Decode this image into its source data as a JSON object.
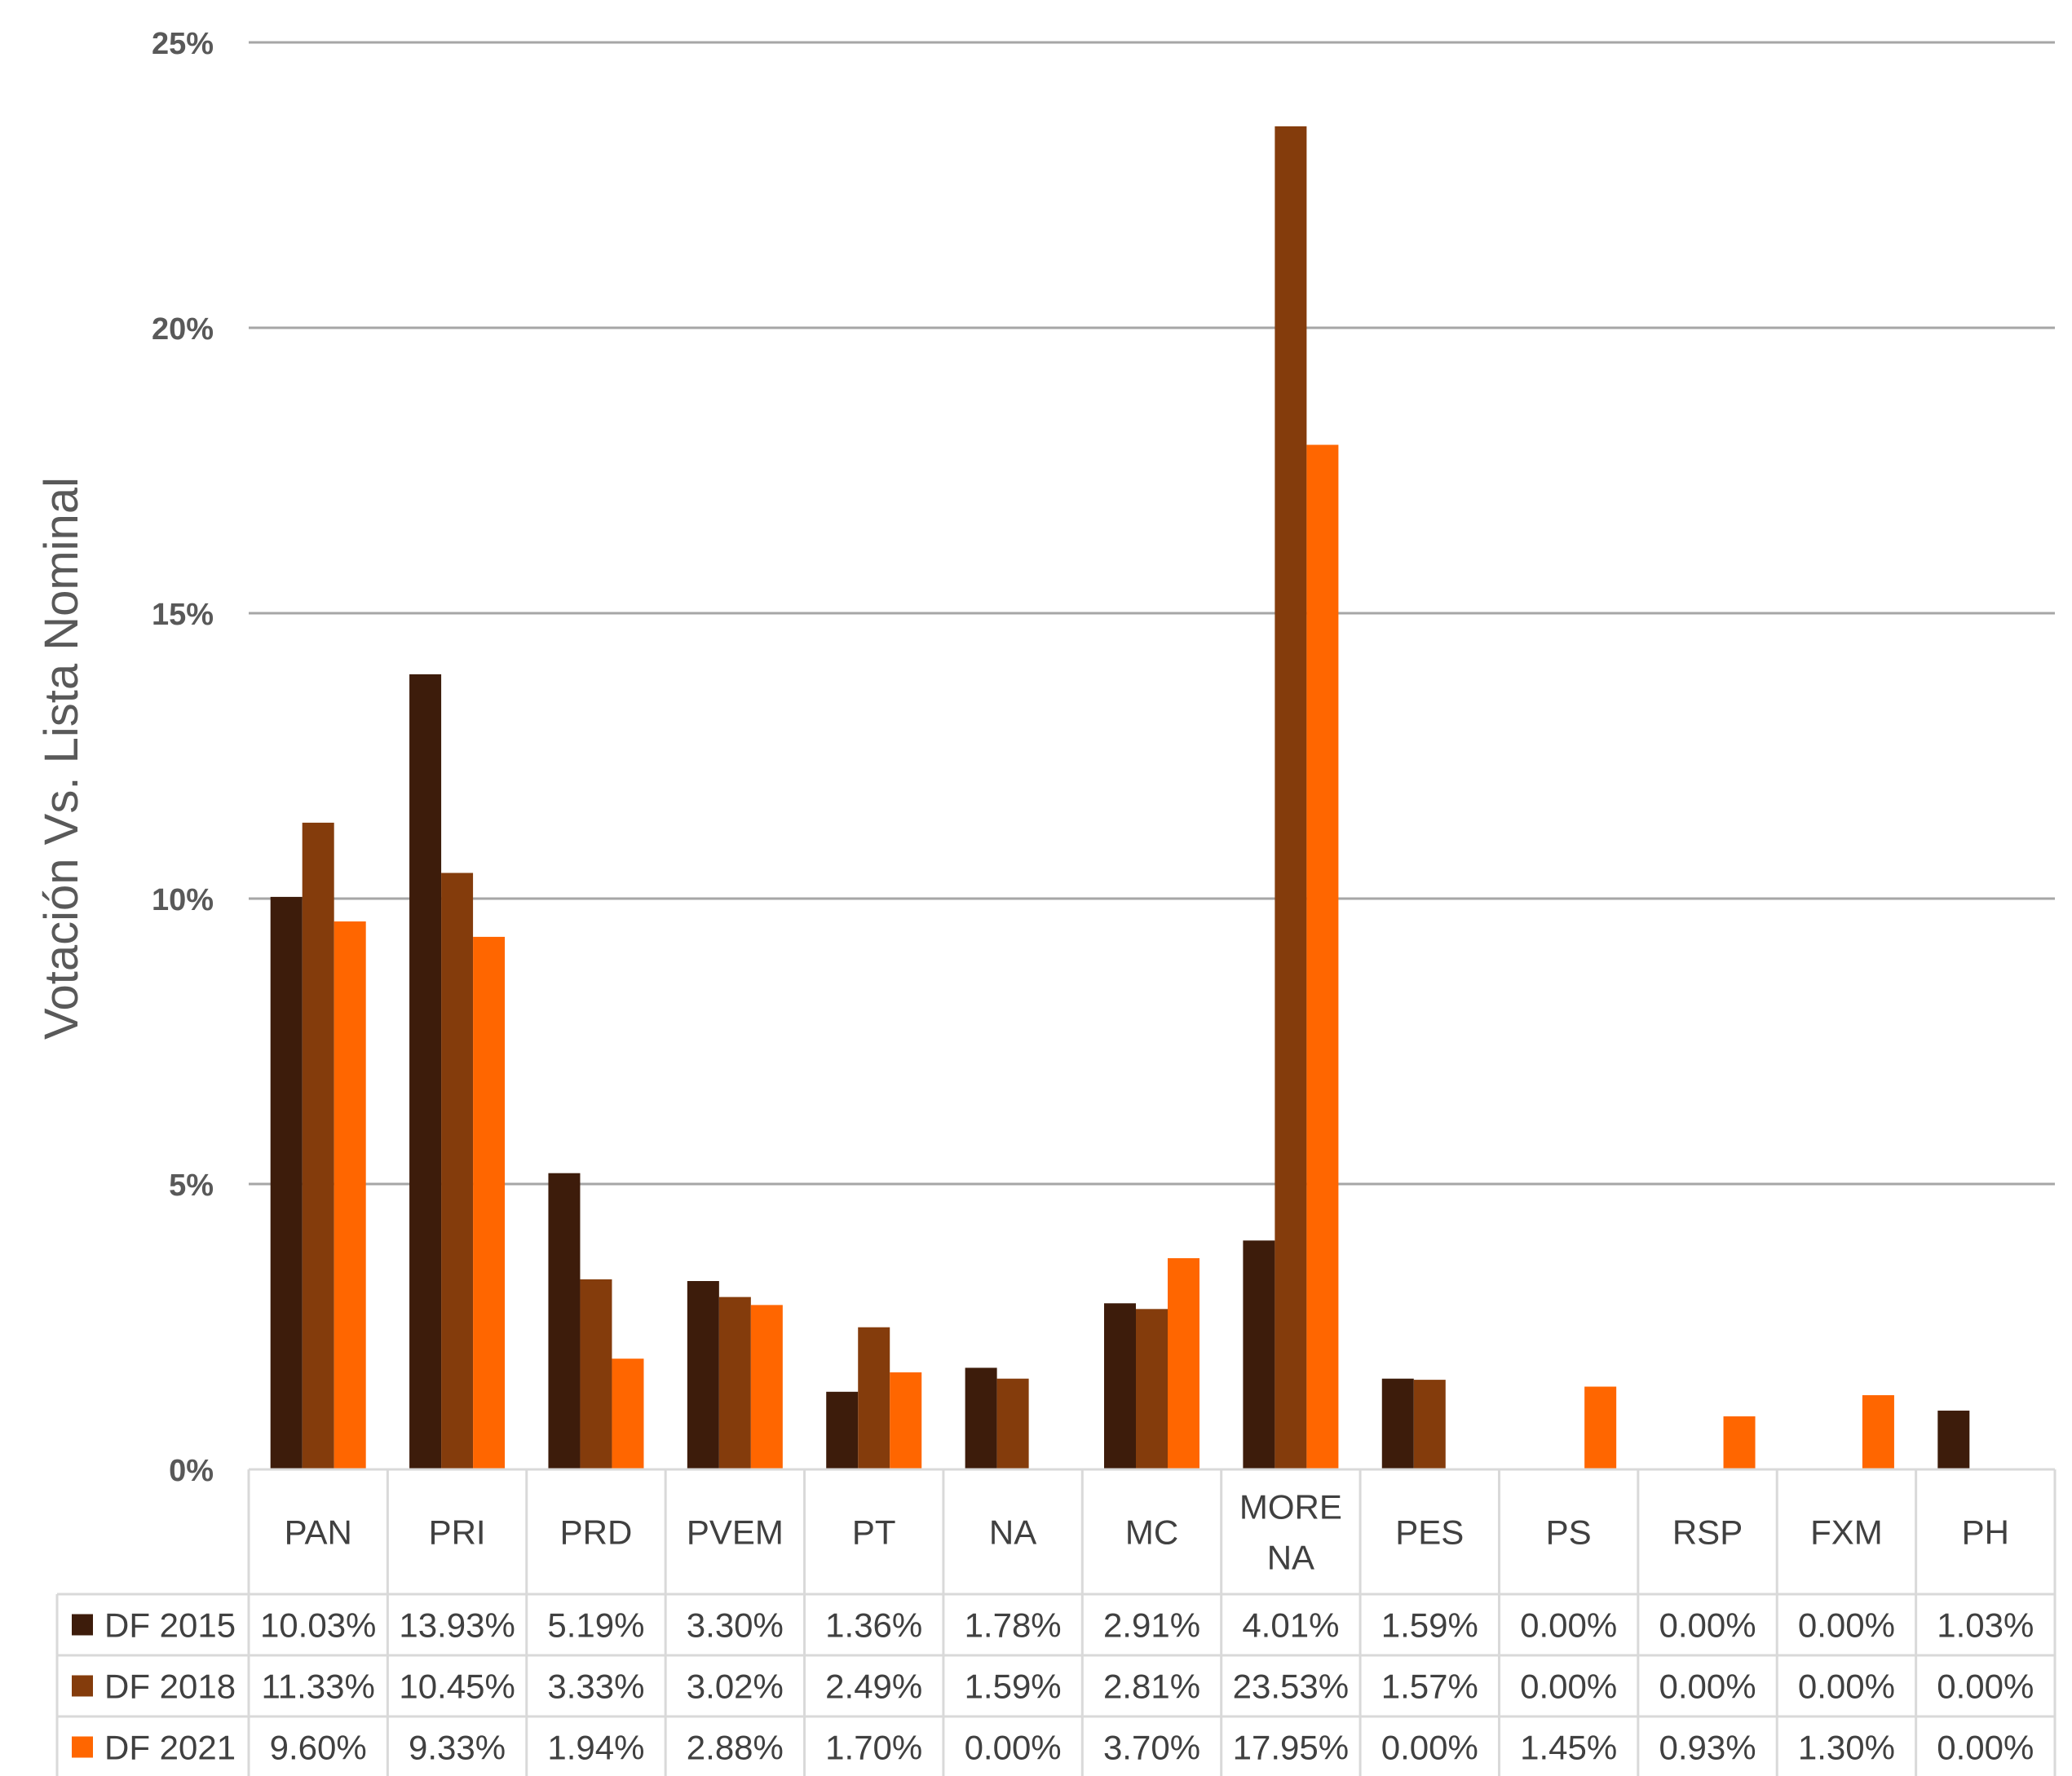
{
  "chart_data": {
    "type": "bar",
    "ylabel": "Votación Vs. Lista Nominal",
    "ylim": [
      0,
      25
    ],
    "yticks": [
      "0%",
      "5%",
      "10%",
      "15%",
      "20%",
      "25%"
    ],
    "grid": true,
    "legend": "data-table",
    "categories": [
      [
        "PAN"
      ],
      [
        "PRI"
      ],
      [
        "PRD"
      ],
      [
        "PVEM"
      ],
      [
        "PT"
      ],
      [
        "NA"
      ],
      [
        "MC"
      ],
      [
        "MORE",
        "NA"
      ],
      [
        "PES"
      ],
      [
        "PS"
      ],
      [
        "RSP"
      ],
      [
        "FXM"
      ],
      [
        "PH"
      ]
    ],
    "series": [
      {
        "name": "DF 2015",
        "color": "#3D1C0B",
        "values": [
          10.03,
          13.93,
          5.19,
          3.3,
          1.36,
          1.78,
          2.91,
          4.01,
          1.59,
          0.0,
          0.0,
          0.0,
          1.03
        ],
        "labels": [
          "10.03%",
          "13.93%",
          "5.19%",
          "3.30%",
          "1.36%",
          "1.78%",
          "2.91%",
          "4.01%",
          "1.59%",
          "0.00%",
          "0.00%",
          "0.00%",
          "1.03%"
        ]
      },
      {
        "name": "DF 2018",
        "color": "#843C0C",
        "values": [
          11.33,
          10.45,
          3.33,
          3.02,
          2.49,
          1.59,
          2.81,
          23.53,
          1.57,
          0.0,
          0.0,
          0.0,
          0.0
        ],
        "labels": [
          "11.33%",
          "10.45%",
          "3.33%",
          "3.02%",
          "2.49%",
          "1.59%",
          "2.81%",
          "23.53%",
          "1.57%",
          "0.00%",
          "0.00%",
          "0.00%",
          "0.00%"
        ]
      },
      {
        "name": "DF 2021",
        "color": "#FF6600",
        "values": [
          9.6,
          9.33,
          1.94,
          2.88,
          1.7,
          0.0,
          3.7,
          17.95,
          0.0,
          1.45,
          0.93,
          1.3,
          0.0
        ],
        "labels": [
          "9.60%",
          "9.33%",
          "1.94%",
          "2.88%",
          "1.70%",
          "0.00%",
          "3.70%",
          "17.95%",
          "0.00%",
          "1.45%",
          "0.93%",
          "1.30%",
          "0.00%"
        ]
      }
    ]
  }
}
